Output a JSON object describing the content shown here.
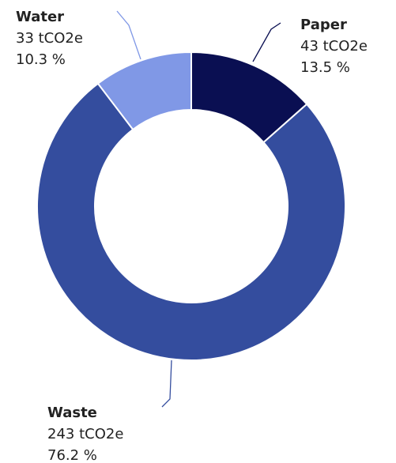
{
  "chart_data": {
    "type": "pie",
    "style": "donut",
    "unit": "tCO2e",
    "slices": [
      {
        "name": "Paper",
        "value": 43,
        "value_text": "43 tCO2e",
        "percent_text": "13.5 %",
        "color": "#0a0f52"
      },
      {
        "name": "Waste",
        "value": 243,
        "value_text": "243 tCO2e",
        "percent_text": "76.2 %",
        "color": "#344d9e"
      },
      {
        "name": "Water",
        "value": 33,
        "value_text": "33 tCO2e",
        "percent_text": "10.3 %",
        "color": "#8098e6"
      }
    ],
    "legend": "none"
  }
}
